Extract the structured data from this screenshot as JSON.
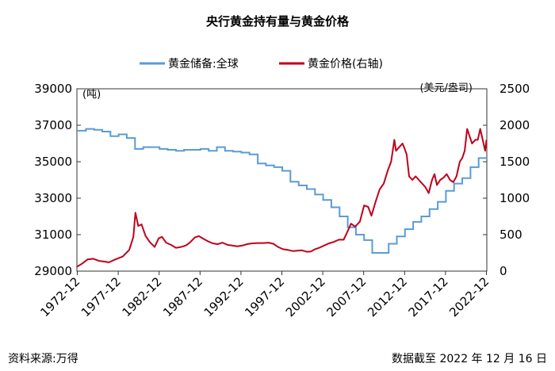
{
  "chart_data": {
    "type": "line",
    "title": "央行黄金持有量与黄金价格",
    "legend": [
      "黄金储备:全球",
      "黄金价格(右轴)"
    ],
    "y_left_unit": "(吨)",
    "y_right_unit": "(美元/盎司)",
    "y_left_ticks": [
      "29000",
      "31000",
      "33000",
      "35000",
      "37000",
      "39000"
    ],
    "y_right_ticks": [
      "0",
      "500",
      "1000",
      "1500",
      "2000",
      "2500"
    ],
    "y_left_lim": [
      29000,
      39000
    ],
    "y_right_lim": [
      0,
      2500
    ],
    "x_ticks": [
      "1972-12",
      "1977-12",
      "1982-12",
      "1987-12",
      "1992-12",
      "1997-12",
      "2002-12",
      "2007-12",
      "2012-12",
      "2017-12",
      "2022-12"
    ],
    "x_lim": [
      1972.9,
      2023.0
    ],
    "colors": {
      "reserve": "#5b9bd5",
      "gold": "#c0001a"
    },
    "series": [
      {
        "name": "黄金储备:全球",
        "axis": "left",
        "step": true,
        "x": [
          1972.9,
          1974.0,
          1975.0,
          1976.0,
          1977.0,
          1978.0,
          1979.0,
          1980.0,
          1981.0,
          1982.0,
          1983.0,
          1984.0,
          1985.0,
          1986.0,
          1987.0,
          1988.0,
          1989.0,
          1990.0,
          1991.0,
          1992.0,
          1993.0,
          1994.0,
          1995.0,
          1996.0,
          1997.0,
          1998.0,
          1999.0,
          2000.0,
          2001.0,
          2002.0,
          2003.0,
          2004.0,
          2005.0,
          2006.0,
          2007.0,
          2008.0,
          2009.0,
          2010.0,
          2011.0,
          2012.0,
          2013.0,
          2014.0,
          2015.0,
          2016.0,
          2017.0,
          2018.0,
          2019.0,
          2020.0,
          2021.0,
          2022.0
        ],
        "values": [
          36700,
          36800,
          36750,
          36650,
          36400,
          36500,
          36300,
          35700,
          35800,
          35800,
          35700,
          35650,
          35600,
          35650,
          35650,
          35700,
          35600,
          35800,
          35600,
          35550,
          35500,
          35400,
          34900,
          34800,
          34700,
          34500,
          33900,
          33700,
          33500,
          33200,
          32900,
          32500,
          32000,
          31400,
          31000,
          30700,
          30000,
          30000,
          30500,
          30900,
          31300,
          31700,
          32000,
          32400,
          32800,
          33400,
          33800,
          34100,
          34700,
          35200
        ]
      },
      {
        "name": "黄金价格(右轴)",
        "axis": "right",
        "x": [
          1972.9,
          1973.5,
          1974.2,
          1974.9,
          1975.6,
          1976.3,
          1976.8,
          1977.5,
          1978.5,
          1979.3,
          1979.8,
          1980.05,
          1980.4,
          1980.8,
          1981.3,
          1981.8,
          1982.4,
          1982.9,
          1983.3,
          1983.8,
          1984.4,
          1985.0,
          1985.6,
          1986.2,
          1986.7,
          1987.3,
          1987.8,
          1988.4,
          1988.9,
          1989.5,
          1990.1,
          1990.7,
          1991.3,
          1991.9,
          1992.5,
          1993.1,
          1993.7,
          1994.3,
          1995.0,
          1995.7,
          1996.3,
          1996.9,
          1997.5,
          1998.1,
          1998.7,
          1999.3,
          1999.8,
          2000.4,
          2001.0,
          2001.5,
          2002.0,
          2002.5,
          2003.1,
          2003.7,
          2004.3,
          2004.9,
          2005.5,
          2006.0,
          2006.4,
          2006.9,
          2007.5,
          2008.0,
          2008.5,
          2008.9,
          2009.4,
          2009.9,
          2010.4,
          2010.9,
          2011.3,
          2011.7,
          2011.9,
          2012.3,
          2012.7,
          2012.95,
          2013.2,
          2013.5,
          2013.9,
          2014.3,
          2014.7,
          2015.1,
          2015.5,
          2015.9,
          2016.3,
          2016.6,
          2016.9,
          2017.3,
          2017.7,
          2018.1,
          2018.5,
          2018.9,
          2019.3,
          2019.7,
          2020.0,
          2020.3,
          2020.6,
          2020.9,
          2021.2,
          2021.6,
          2021.9,
          2022.2,
          2022.5,
          2022.8,
          2022.96
        ],
        "values": [
          60,
          100,
          160,
          170,
          140,
          130,
          120,
          155,
          200,
          290,
          470,
          800,
          620,
          640,
          480,
          400,
          330,
          450,
          470,
          390,
          360,
          320,
          330,
          350,
          390,
          460,
          480,
          440,
          410,
          380,
          370,
          390,
          360,
          350,
          340,
          350,
          370,
          380,
          385,
          385,
          390,
          375,
          330,
          300,
          290,
          275,
          280,
          285,
          265,
          270,
          300,
          320,
          350,
          380,
          400,
          430,
          430,
          550,
          650,
          610,
          680,
          900,
          880,
          760,
          950,
          1120,
          1200,
          1380,
          1500,
          1800,
          1650,
          1700,
          1750,
          1680,
          1600,
          1300,
          1250,
          1300,
          1250,
          1200,
          1150,
          1070,
          1250,
          1330,
          1180,
          1250,
          1280,
          1330,
          1250,
          1220,
          1300,
          1500,
          1550,
          1650,
          1950,
          1850,
          1750,
          1800,
          1800,
          1950,
          1800,
          1650,
          1800
        ]
      }
    ]
  },
  "footer": {
    "source": "资料来源:万得",
    "date_note": "数据截至 2022 年 12 月 16 日"
  }
}
